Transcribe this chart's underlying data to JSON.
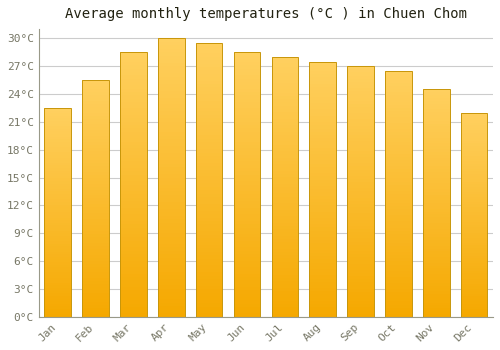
{
  "title": "Average monthly temperatures (°C ) in Chuen Chom",
  "months": [
    "Jan",
    "Feb",
    "Mar",
    "Apr",
    "May",
    "Jun",
    "Jul",
    "Aug",
    "Sep",
    "Oct",
    "Nov",
    "Dec"
  ],
  "temperatures": [
    22.5,
    25.5,
    28.5,
    30.0,
    29.5,
    28.5,
    28.0,
    27.5,
    27.0,
    26.5,
    24.5,
    22.0
  ],
  "bar_color_bottom": "#F5A800",
  "bar_color_top": "#FFD060",
  "bar_edge_color": "#C8960A",
  "background_color": "#FFFFFF",
  "grid_color": "#CCCCCC",
  "text_color": "#777766",
  "title_color": "#222211",
  "ylim": [
    0,
    31
  ],
  "yticks": [
    0,
    3,
    6,
    9,
    12,
    15,
    18,
    21,
    24,
    27,
    30
  ],
  "ytick_labels": [
    "0°C",
    "3°C",
    "6°C",
    "9°C",
    "12°C",
    "15°C",
    "18°C",
    "21°C",
    "24°C",
    "27°C",
    "30°C"
  ],
  "title_fontsize": 10,
  "tick_fontsize": 8,
  "figsize": [
    5.0,
    3.5
  ],
  "dpi": 100,
  "bar_width": 0.7
}
